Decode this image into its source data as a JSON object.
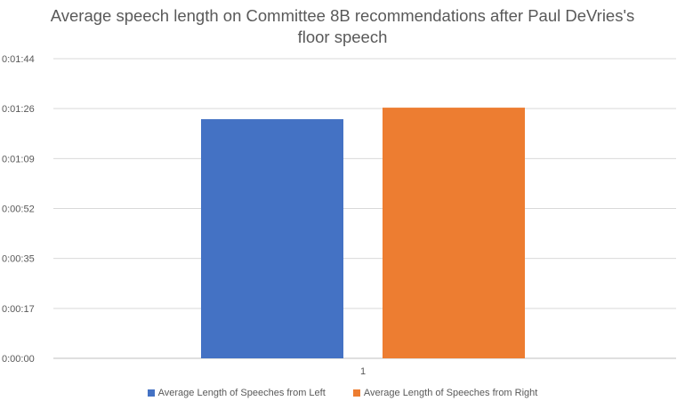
{
  "chart_data": {
    "type": "bar",
    "title_lines": [
      "Average speech length on Committee 8B recommendations after Paul DeVries's",
      "floor speech"
    ],
    "categories": [
      "1"
    ],
    "series": [
      {
        "name": "Average Length of Speeches from Left",
        "values": [
          83
        ],
        "color": "#4472C4"
      },
      {
        "name": "Average Length of Speeches from Right",
        "values": [
          87
        ],
        "color": "#ED7D31"
      }
    ],
    "y_ticks": [
      "0:00:00",
      "0:00:17",
      "0:00:35",
      "0:00:52",
      "0:01:09",
      "0:01:26",
      "0:01:44"
    ],
    "y_unit": "seconds",
    "ylim": [
      0,
      104
    ],
    "grid": true,
    "legend_position": "bottom"
  }
}
